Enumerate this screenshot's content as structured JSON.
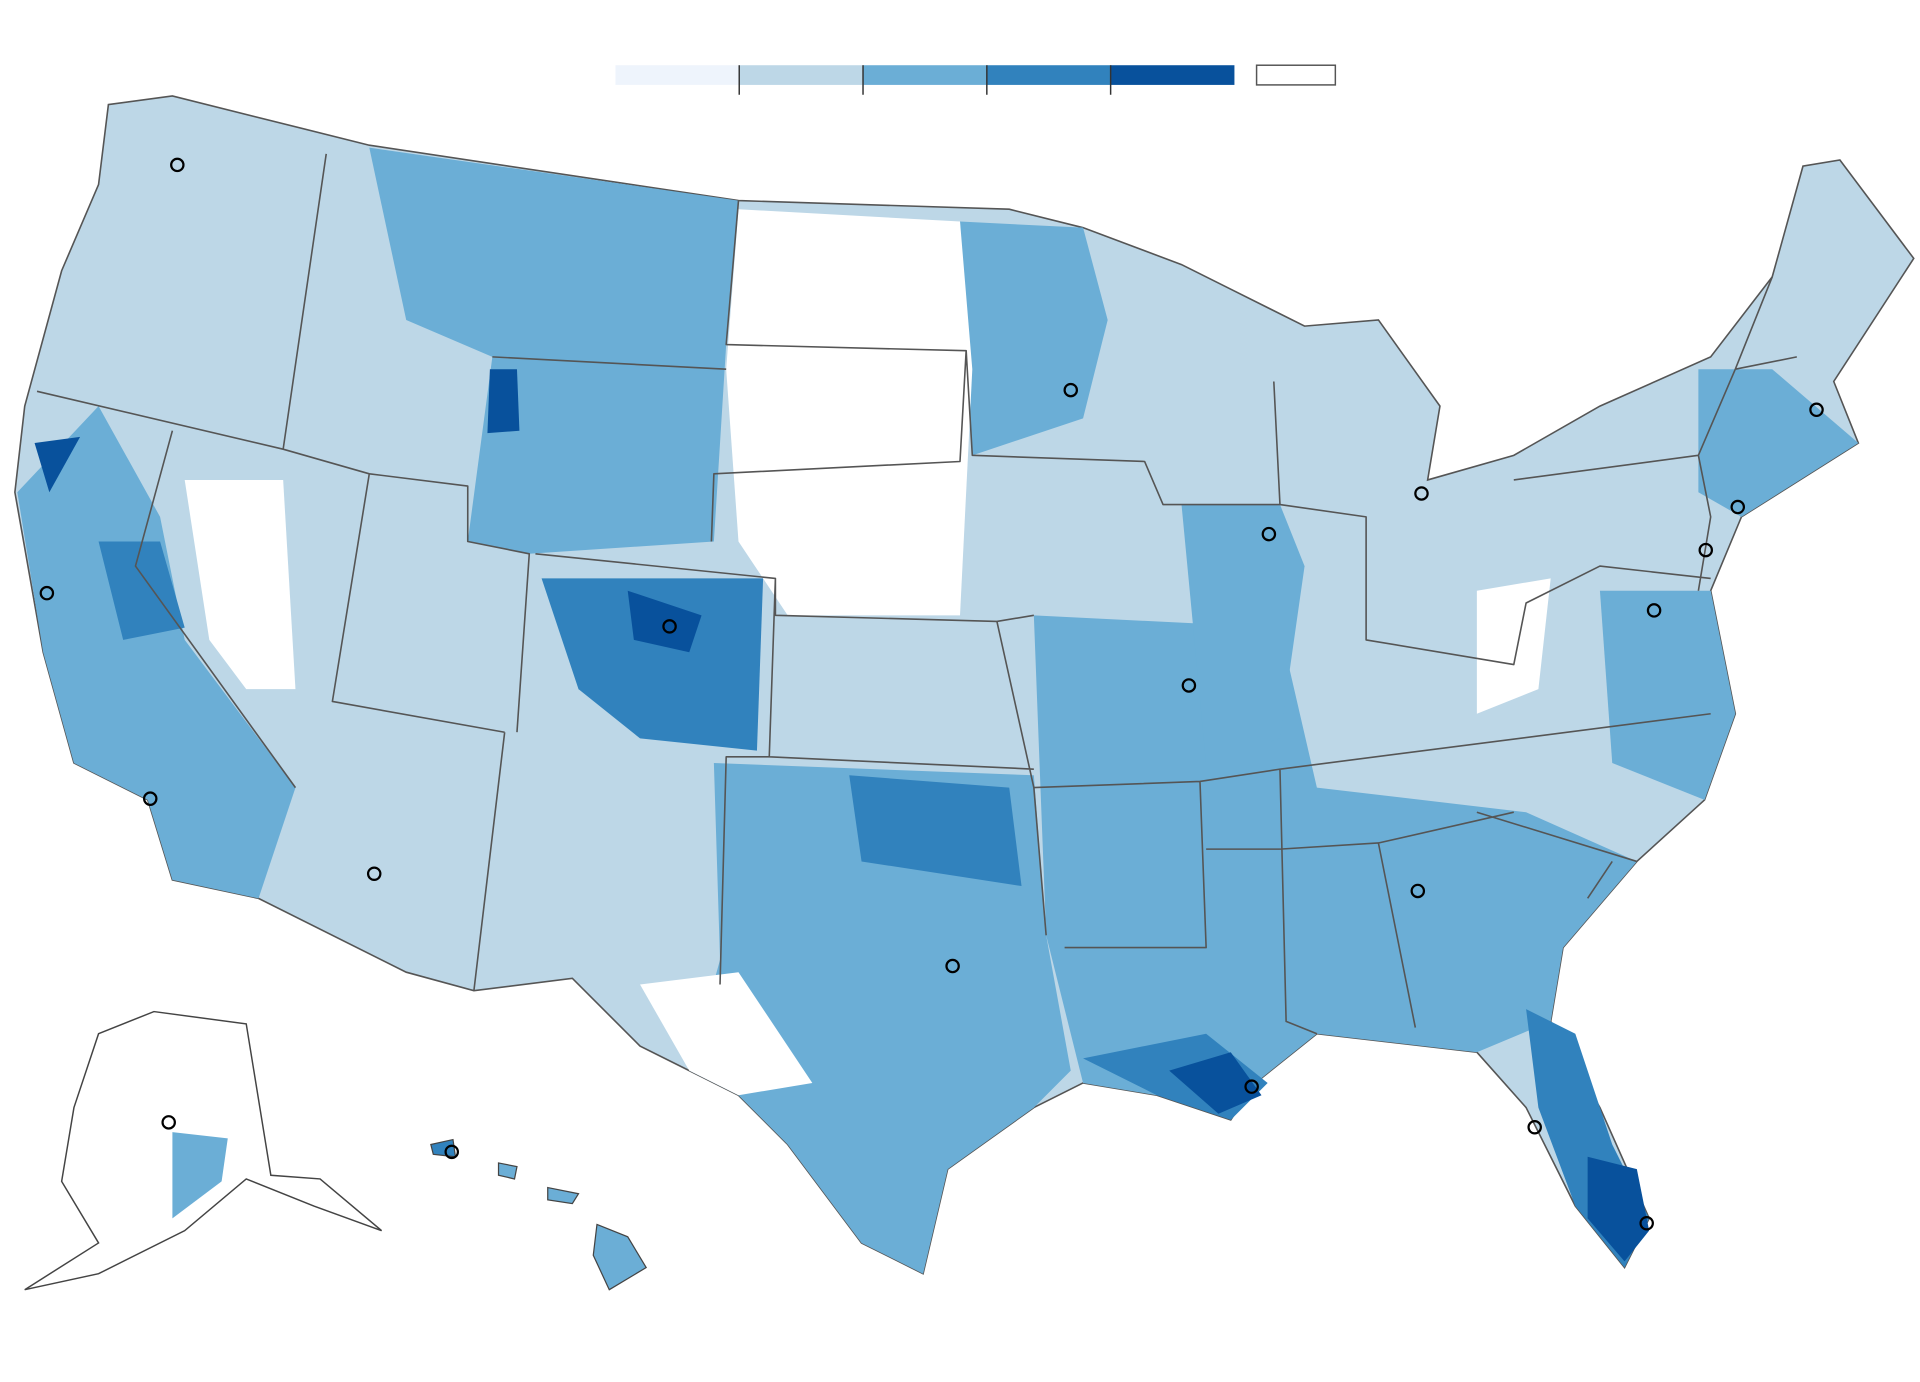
{
  "legend": {
    "colors": [
      "#eef4fc",
      "#bdd7e7",
      "#6baed6",
      "#3182bd",
      "#08519c"
    ],
    "no_data_color": "#ffffff"
  }
}
